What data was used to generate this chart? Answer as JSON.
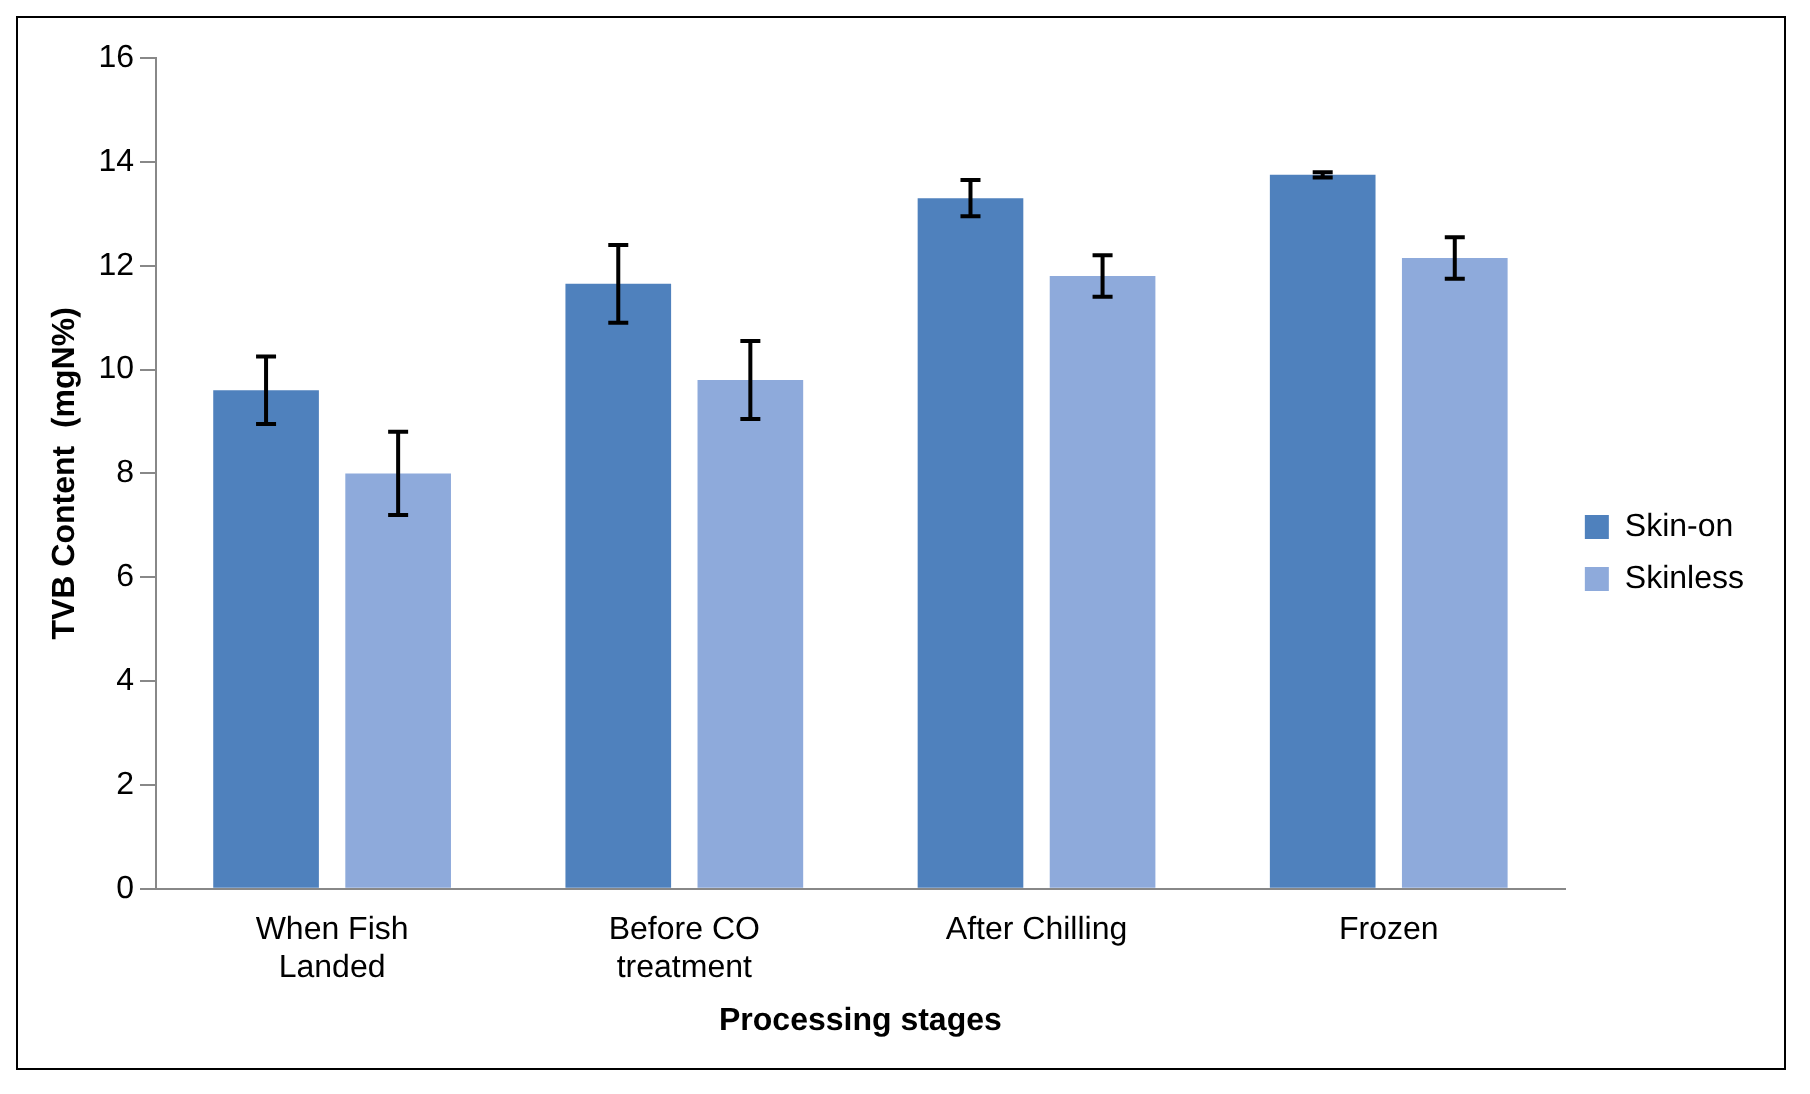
{
  "chart_data": {
    "type": "bar",
    "xlabel": "Processing stages",
    "ylabel": "TVB Content  (mgN%)",
    "categories": [
      "When Fish Landed",
      "Before CO treatment",
      "After Chilling",
      "Frozen"
    ],
    "series": [
      {
        "name": "Skin-on",
        "color": "#4f81bd",
        "values": [
          9.6,
          11.65,
          13.3,
          13.75
        ],
        "errors": [
          0.65,
          0.75,
          0.35,
          0.05
        ]
      },
      {
        "name": "Skinless",
        "color": "#8eaadb",
        "values": [
          8.0,
          9.8,
          11.8,
          12.15
        ],
        "errors": [
          0.8,
          0.75,
          0.4,
          0.4
        ]
      }
    ],
    "ylim": [
      0,
      16
    ],
    "yticks": [
      0,
      2,
      4,
      6,
      8,
      10,
      12,
      14,
      16
    ],
    "grid": false,
    "legend": "right"
  }
}
